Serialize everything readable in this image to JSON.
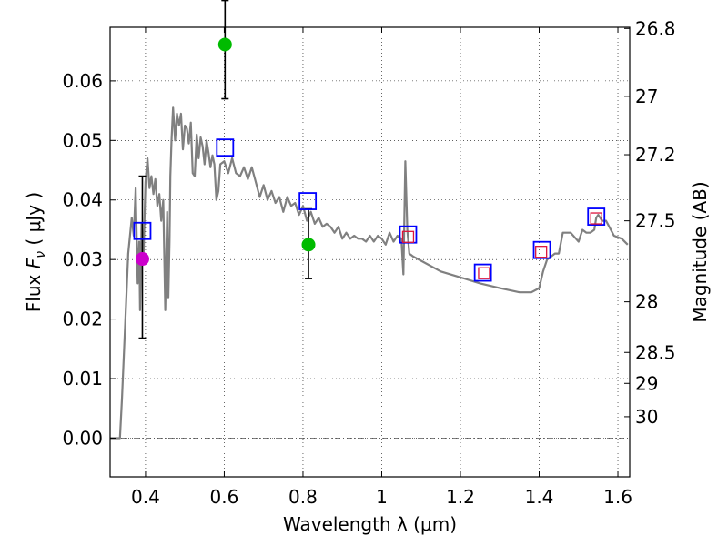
{
  "chart_data": {
    "type": "scatter",
    "xlabel": "Wavelength  λ (μm)",
    "ylabel_prefix": "Flux  ",
    "ylabel_symbol": "F",
    "ylabel_sub": "ν",
    "ylabel_suffix": "  ( μJy )",
    "y2label": "Magnitude (AB)",
    "xlim": [
      0.31,
      1.63
    ],
    "ylim": [
      -0.0065,
      0.069
    ],
    "grid": true,
    "x_ticks": [
      0.4,
      0.6,
      0.8,
      1.0,
      1.2,
      1.4,
      1.6
    ],
    "x_tick_labels": [
      "0.4",
      "0.6",
      "0.8",
      "1",
      "1.2",
      "1.4",
      "1.6"
    ],
    "y_ticks": [
      0.0,
      0.01,
      0.02,
      0.03,
      0.04,
      0.05,
      0.06
    ],
    "y_tick_labels": [
      "0.00",
      "0.01",
      "0.02",
      "0.03",
      "0.04",
      "0.05",
      "0.06"
    ],
    "y2_ticks": [
      {
        "flux": 0.0688,
        "label": "26.8"
      },
      {
        "flux": 0.0574,
        "label": "27"
      },
      {
        "flux": 0.0476,
        "label": "27.2"
      },
      {
        "flux": 0.0365,
        "label": "27.5"
      },
      {
        "flux": 0.0229,
        "label": "28"
      },
      {
        "flux": 0.0144,
        "label": "28.5"
      },
      {
        "flux": 0.0092,
        "label": "29"
      },
      {
        "flux": 0.0036,
        "label": "30"
      }
    ],
    "series": [
      {
        "name": "model spectrum",
        "kind": "line",
        "color": "#808080",
        "x": [
          0.31,
          0.335,
          0.34,
          0.348,
          0.356,
          0.365,
          0.37,
          0.375,
          0.38,
          0.384,
          0.386,
          0.39,
          0.395,
          0.4,
          0.405,
          0.41,
          0.415,
          0.42,
          0.425,
          0.43,
          0.435,
          0.44,
          0.445,
          0.45,
          0.455,
          0.458,
          0.461,
          0.463,
          0.466,
          0.47,
          0.475,
          0.48,
          0.485,
          0.49,
          0.495,
          0.5,
          0.505,
          0.51,
          0.515,
          0.52,
          0.525,
          0.53,
          0.535,
          0.54,
          0.545,
          0.55,
          0.555,
          0.56,
          0.565,
          0.57,
          0.575,
          0.58,
          0.585,
          0.59,
          0.6,
          0.61,
          0.62,
          0.63,
          0.64,
          0.65,
          0.66,
          0.67,
          0.68,
          0.69,
          0.7,
          0.71,
          0.72,
          0.73,
          0.74,
          0.75,
          0.76,
          0.77,
          0.78,
          0.79,
          0.8,
          0.81,
          0.82,
          0.83,
          0.84,
          0.85,
          0.86,
          0.87,
          0.88,
          0.89,
          0.9,
          0.91,
          0.92,
          0.93,
          0.94,
          0.95,
          0.96,
          0.97,
          0.98,
          0.99,
          1.0,
          1.01,
          1.02,
          1.03,
          1.04,
          1.05,
          1.055,
          1.06,
          1.065,
          1.07,
          1.08,
          1.1,
          1.15,
          1.2,
          1.25,
          1.3,
          1.35,
          1.38,
          1.4,
          1.41,
          1.42,
          1.44,
          1.45,
          1.46,
          1.48,
          1.5,
          1.51,
          1.52,
          1.53,
          1.54,
          1.545,
          1.55,
          1.56,
          1.57,
          1.59,
          1.61,
          1.625
        ],
        "y": [
          0.0,
          0.0,
          0.0065,
          0.0185,
          0.031,
          0.037,
          0.034,
          0.042,
          0.026,
          0.033,
          0.0215,
          0.036,
          0.031,
          0.043,
          0.047,
          0.042,
          0.044,
          0.041,
          0.0435,
          0.039,
          0.041,
          0.0365,
          0.04,
          0.0215,
          0.038,
          0.0235,
          0.033,
          0.044,
          0.05,
          0.0555,
          0.05,
          0.0545,
          0.0525,
          0.0545,
          0.0485,
          0.0525,
          0.052,
          0.0495,
          0.053,
          0.0445,
          0.044,
          0.051,
          0.047,
          0.0505,
          0.049,
          0.046,
          0.05,
          0.048,
          0.0455,
          0.0475,
          0.046,
          0.04,
          0.0415,
          0.046,
          0.0465,
          0.0445,
          0.047,
          0.0445,
          0.044,
          0.0455,
          0.0435,
          0.0455,
          0.043,
          0.0405,
          0.0425,
          0.04,
          0.0415,
          0.0395,
          0.0405,
          0.038,
          0.0405,
          0.039,
          0.0395,
          0.0375,
          0.039,
          0.0365,
          0.038,
          0.036,
          0.037,
          0.0355,
          0.036,
          0.0355,
          0.0345,
          0.0355,
          0.0335,
          0.0345,
          0.0335,
          0.034,
          0.0335,
          0.0335,
          0.033,
          0.034,
          0.033,
          0.034,
          0.0335,
          0.0325,
          0.0345,
          0.033,
          0.034,
          0.0335,
          0.0275,
          0.0465,
          0.035,
          0.031,
          0.0305,
          0.0298,
          0.028,
          0.027,
          0.026,
          0.0252,
          0.0245,
          0.0245,
          0.0252,
          0.028,
          0.03,
          0.031,
          0.031,
          0.0345,
          0.0345,
          0.033,
          0.035,
          0.0345,
          0.0345,
          0.035,
          0.037,
          0.0375,
          0.0365,
          0.0365,
          0.034,
          0.0335,
          0.0325
        ]
      },
      {
        "name": "model band fluxes",
        "kind": "open-square",
        "color": "#0000ff",
        "x": [
          0.392,
          0.602,
          0.812,
          1.067,
          1.257,
          1.407,
          1.545
        ],
        "y": [
          0.0348,
          0.0488,
          0.0398,
          0.0342,
          0.0278,
          0.0316,
          0.0372
        ]
      },
      {
        "name": "model band fluxes (small)",
        "kind": "open-square-small",
        "color": "#dc143c",
        "x": [
          1.067,
          1.26,
          1.405,
          1.545
        ],
        "y": [
          0.0338,
          0.0277,
          0.0313,
          0.0369
        ]
      },
      {
        "name": "green photometry",
        "kind": "filled-circle",
        "color": "#00bb00",
        "x": [
          0.602,
          0.814
        ],
        "y": [
          0.0661,
          0.0325
        ],
        "yerr_low": [
          0.057,
          0.0268
        ],
        "yerr_high": [
          0.0735,
          0.0385
        ]
      },
      {
        "name": "magenta photometry",
        "kind": "filled-circle",
        "color": "#cc00cc",
        "x": [
          0.392
        ],
        "y": [
          0.0301
        ],
        "yerr_low": [
          0.0168
        ],
        "yerr_high": [
          0.044
        ]
      }
    ]
  }
}
